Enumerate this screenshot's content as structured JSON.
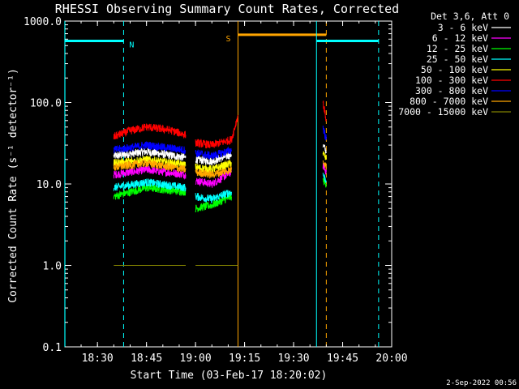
{
  "chart_data": {
    "type": "line",
    "title": "RHESSI Observing Summary Count Rates, Corrected",
    "xlabel": "Start Time (03-Feb-17 18:20:02)",
    "ylabel": "Corrected Count Rate (s⁻¹ detector⁻¹)",
    "y_scale": "log",
    "ylim": [
      0.1,
      1000.0
    ],
    "xlim": [
      "18:20:02",
      "20:00:00"
    ],
    "x_ticks": [
      "18:30",
      "18:45",
      "19:00",
      "19:15",
      "19:30",
      "19:45",
      "20:00"
    ],
    "y_ticks": [
      "0.1",
      "1.0",
      "10.0",
      "100.0",
      "1000.0"
    ],
    "legend_title": "Det 3,6, Att 0",
    "legend_position": "right",
    "series": [
      {
        "name": "3 - 6 keV",
        "color": "#ffffff",
        "segments": [
          {
            "x": [
              "18:35",
              "18:45",
              "18:57"
            ],
            "y": [
              22,
              25,
              21
            ]
          },
          {
            "x": [
              "19:00",
              "19:05",
              "19:11"
            ],
            "y": [
              20,
              19,
              23
            ]
          },
          {
            "x": [
              "19:39",
              "19:40"
            ],
            "y": [
              30,
              25
            ]
          }
        ]
      },
      {
        "name": "6 - 12 keV",
        "color": "#ff00ff",
        "segments": [
          {
            "x": [
              "18:35",
              "18:45",
              "18:57"
            ],
            "y": [
              13,
              15,
              13
            ]
          },
          {
            "x": [
              "19:00",
              "19:05",
              "19:11"
            ],
            "y": [
              11,
              10,
              14
            ]
          },
          {
            "x": [
              "19:39",
              "19:40"
            ],
            "y": [
              17,
              14
            ]
          }
        ]
      },
      {
        "name": "12 - 25 keV",
        "color": "#00ff00",
        "segments": [
          {
            "x": [
              "18:35",
              "18:45",
              "18:57"
            ],
            "y": [
              7,
              9,
              8
            ]
          },
          {
            "x": [
              "19:00",
              "19:05",
              "19:11"
            ],
            "y": [
              5,
              5.5,
              7
            ]
          },
          {
            "x": [
              "19:39",
              "19:40"
            ],
            "y": [
              11,
              10
            ]
          }
        ]
      },
      {
        "name": "25 - 50 keV",
        "color": "#00ffff",
        "segments": [
          {
            "x": [
              "18:35",
              "18:45",
              "18:57"
            ],
            "y": [
              9,
              10.5,
              9
            ]
          },
          {
            "x": [
              "19:00",
              "19:05",
              "19:11"
            ],
            "y": [
              7,
              6.5,
              8
            ]
          },
          {
            "x": [
              "19:39",
              "19:40"
            ],
            "y": [
              13,
              11
            ]
          }
        ]
      },
      {
        "name": "50 - 100 keV",
        "color": "#ffff00",
        "segments": [
          {
            "x": [
              "18:35",
              "18:45",
              "18:57"
            ],
            "y": [
              18,
              20,
              17
            ]
          },
          {
            "x": [
              "19:00",
              "19:05",
              "19:11"
            ],
            "y": [
              16,
              15,
              18
            ]
          },
          {
            "x": [
              "19:39",
              "19:40"
            ],
            "y": [
              24,
              20
            ]
          }
        ]
      },
      {
        "name": "100 - 300 keV",
        "color": "#ff0000",
        "segments": [
          {
            "x": [
              "18:35",
              "18:40",
              "18:45",
              "18:52",
              "18:57"
            ],
            "y": [
              38,
              45,
              50,
              46,
              40
            ]
          },
          {
            "x": [
              "19:00",
              "19:05",
              "19:11",
              "19:13"
            ],
            "y": [
              32,
              30,
              35,
              70
            ]
          },
          {
            "x": [
              "19:39",
              "19:40"
            ],
            "y": [
              100,
              60
            ]
          }
        ]
      },
      {
        "name": "300 - 800 keV",
        "color": "#0000ff",
        "segments": [
          {
            "x": [
              "18:35",
              "18:45",
              "18:57"
            ],
            "y": [
              26,
              30,
              26
            ]
          },
          {
            "x": [
              "19:00",
              "19:05",
              "19:11"
            ],
            "y": [
              24,
              22,
              26
            ]
          },
          {
            "x": [
              "19:39",
              "19:40"
            ],
            "y": [
              50,
              35
            ]
          }
        ]
      },
      {
        "name": "800 - 7000 keV",
        "color": "#ffa500",
        "segments": [
          {
            "x": [
              "18:35",
              "18:45",
              "18:57"
            ],
            "y": [
              16,
              18,
              15
            ]
          },
          {
            "x": [
              "19:00",
              "19:05",
              "19:11"
            ],
            "y": [
              14,
              13,
              15
            ]
          },
          {
            "x": [
              "19:39",
              "19:40"
            ],
            "y": [
              20,
              16
            ]
          }
        ]
      },
      {
        "name": "7000 - 15000 keV",
        "color": "#808000",
        "segments": [
          {
            "x": [
              "18:35",
              "18:40",
              "18:45",
              "18:50",
              "18:57"
            ],
            "y": [
              1,
              1,
              1,
              1,
              1
            ]
          },
          {
            "x": [
              "19:00",
              "19:05",
              "19:13"
            ],
            "y": [
              1,
              1,
              1
            ]
          }
        ]
      }
    ],
    "annotations": [
      {
        "label": "N",
        "color": "#00ffff",
        "bar": [
          "18:20:02",
          "18:38"
        ],
        "y": 570,
        "lines": [
          {
            "x": "18:38",
            "style": "dashed"
          }
        ]
      },
      {
        "label": "S",
        "color": "#ffa500",
        "bar": [
          "19:13",
          "19:40"
        ],
        "y": 680,
        "lines": [
          {
            "x": "19:13",
            "style": "solid"
          },
          {
            "x": "19:40",
            "style": "dashed"
          }
        ]
      },
      {
        "label": "",
        "color": "#00ffff",
        "bar": [
          "19:37",
          "19:56"
        ],
        "y": 570,
        "lines": [
          {
            "x": "19:37",
            "style": "solid"
          },
          {
            "x": "19:56",
            "style": "dashed"
          }
        ]
      }
    ],
    "extra_lines": [
      {
        "x": "18:20:02",
        "color": "#00ffff",
        "style": "solid"
      }
    ],
    "grid": false
  },
  "footer": "2-Sep-2022 00:56"
}
